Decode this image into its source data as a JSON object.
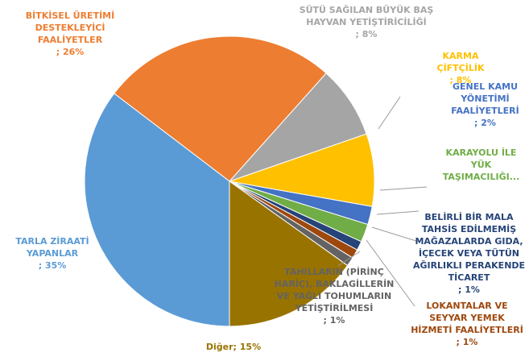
{
  "chart_data": {
    "type": "pie",
    "categories": [
      "TARLA ZİRAATİ YAPANLAR",
      "BİTKİSEL ÜRETİMİ DESTEKLEYİCİ FAALİYETLER",
      "SÜTÜ SAĞILAN BÜYÜK BAŞ HAYVAN YETİŞTİRİCİLİĞİ",
      "KARMA ÇİFTÇİLİK",
      "GENEL KAMU YÖNETİMİ FAALİYETLERİ",
      "KARAYOLU İLE YÜK TAŞIMACILIĞI...",
      "BELİRLİ BİR MALA TAHSİS EDİLMEMİŞ MAĞAZALARDA GIDA, İÇECEK VEYA TÜTÜN AĞIRLIKLI PERAKENDE TİCARET",
      "LOKANTALAR VE SEYYAR YEMEK HİZMETİ FAALİYETLERİ",
      "TAHILLARIN (PİRİNÇ HARİÇ), BAKLAGİLLERİN VE YAĞLI TOHUMLARIN YETİŞTİRİLMESİ",
      "Diğer"
    ],
    "values": [
      35,
      26,
      8,
      8,
      2,
      2,
      1,
      1,
      1,
      15
    ],
    "value_labels": [
      "; 35%",
      "; 26%",
      "; 8%",
      "; 8%",
      "; 2%",
      null,
      "; 1%",
      "; 1%",
      "; 1%",
      "; 15%"
    ],
    "colors": [
      "#5b9bd5",
      "#ed7d31",
      "#a5a5a5",
      "#ffc000",
      "#4472c4",
      "#70ad47",
      "#264478",
      "#9e480e",
      "#636363",
      "#997300"
    ]
  }
}
